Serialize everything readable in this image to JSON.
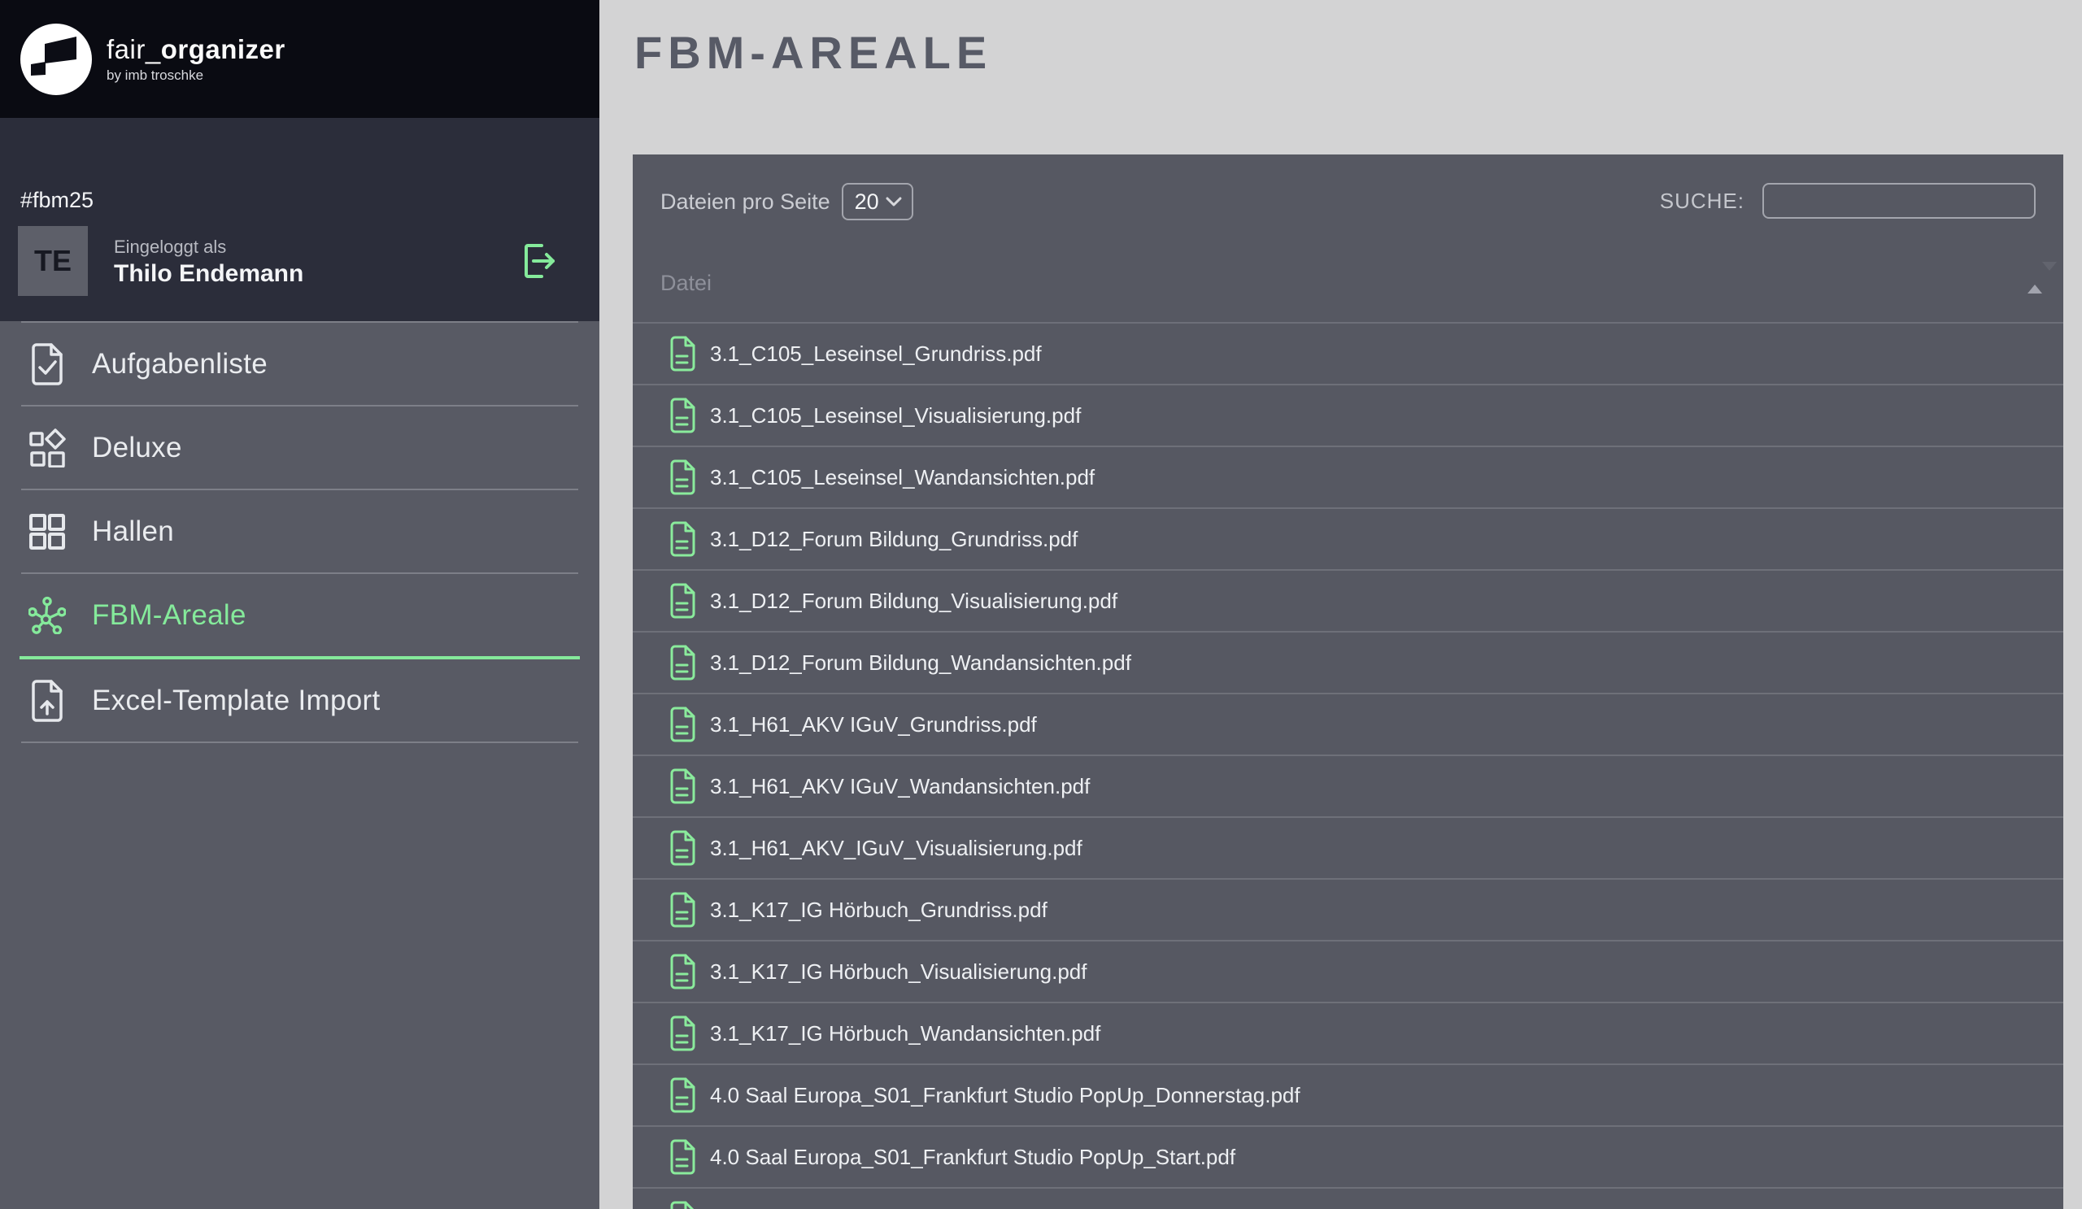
{
  "brand": {
    "name_light": "fair_",
    "name_bold": "organizer",
    "tagline": "by imb troschke",
    "logo_icon": "fair-organizer-logo-icon"
  },
  "event_tag": "#fbm25",
  "user": {
    "initials": "TE",
    "logged_in_label": "Eingeloggt als",
    "name": "Thilo Endemann",
    "logout_icon": "logout-icon"
  },
  "sidebar": {
    "items": [
      {
        "id": "aufgabenliste",
        "label": "Aufgabenliste",
        "icon": "task-list-icon",
        "active": false
      },
      {
        "id": "deluxe",
        "label": "Deluxe",
        "icon": "deluxe-grid-icon",
        "active": false
      },
      {
        "id": "hallen",
        "label": "Hallen",
        "icon": "halls-grid-icon",
        "active": false
      },
      {
        "id": "fbm-areale",
        "label": "FBM-Areale",
        "icon": "network-icon",
        "active": true
      },
      {
        "id": "excel-template-import",
        "label": "Excel-Template Import",
        "icon": "excel-import-icon",
        "active": false
      }
    ]
  },
  "main": {
    "title": "FBM-AREALE",
    "controls": {
      "per_page_label": "Dateien pro Seite",
      "per_page_value": "20",
      "per_page_chevron_icon": "chevron-down-icon",
      "search_label": "SUCHE:",
      "search_value": ""
    },
    "table": {
      "column_header": "Datei",
      "sort_icon": "sort-ascending-icon",
      "row_icon": "file-icon",
      "files": [
        "3.1_C105_Leseinsel_Grundriss.pdf",
        "3.1_C105_Leseinsel_Visualisierung.pdf",
        "3.1_C105_Leseinsel_Wandansichten.pdf",
        "3.1_D12_Forum Bildung_Grundriss.pdf",
        "3.1_D12_Forum Bildung_Visualisierung.pdf",
        "3.1_D12_Forum Bildung_Wandansichten.pdf",
        "3.1_H61_AKV IGuV_Grundriss.pdf",
        "3.1_H61_AKV IGuV_Wandansichten.pdf",
        "3.1_H61_AKV_IGuV_Visualisierung.pdf",
        "3.1_K17_IG Hörbuch_Grundriss.pdf",
        "3.1_K17_IG Hörbuch_Visualisierung.pdf",
        "3.1_K17_IG Hörbuch_Wandansichten.pdf",
        "4.0 Saal Europa_S01_Frankfurt Studio PopUp_Donnerstag.pdf",
        "4.0 Saal Europa_S01_Frankfurt Studio PopUp_Start.pdf"
      ],
      "partial_row_visible": true
    }
  },
  "colors": {
    "accent_green": "#85ea9b",
    "header_bg": "#0a0b12",
    "user_section_bg": "#2b2d3a",
    "sidebar_bg": "#585a64",
    "panel_bg": "#565862",
    "main_bg": "#d3d3d4",
    "text_light": "#f4f5f7"
  }
}
